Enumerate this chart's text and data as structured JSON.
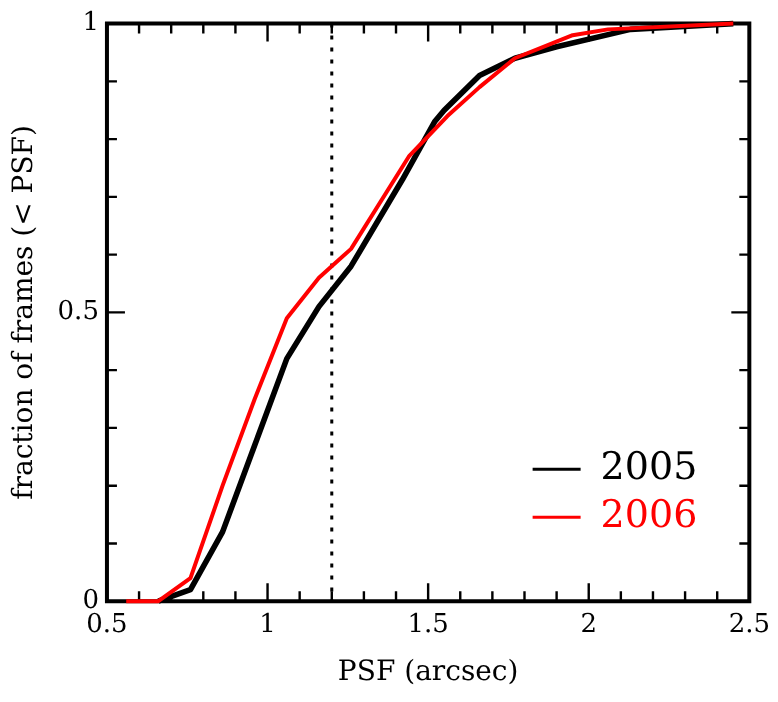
{
  "chart_data": {
    "type": "line",
    "xlabel": "PSF (arcsec)",
    "ylabel": "fraction of frames (< PSF)",
    "xlim": [
      0.5,
      2.5
    ],
    "ylim": [
      0,
      1
    ],
    "xticks": [
      0.5,
      {
        "value": 0.6,
        "label": null
      },
      {
        "value": 0.7,
        "label": null
      },
      {
        "value": 0.8,
        "label": null
      },
      {
        "value": 0.9,
        "label": null
      },
      1,
      {
        "value": 1.1,
        "label": null
      },
      {
        "value": 1.2,
        "label": null
      },
      {
        "value": 1.3,
        "label": null
      },
      {
        "value": 1.4,
        "label": null
      },
      1.5,
      {
        "value": 1.6,
        "label": null
      },
      {
        "value": 1.7,
        "label": null
      },
      {
        "value": 1.8,
        "label": null
      },
      {
        "value": 1.9,
        "label": null
      },
      2,
      {
        "value": 2.1,
        "label": null
      },
      {
        "value": 2.2,
        "label": null
      },
      {
        "value": 2.3,
        "label": null
      },
      {
        "value": 2.4,
        "label": null
      },
      2.5
    ],
    "yticks": [
      0,
      {
        "value": 0.1,
        "label": null
      },
      {
        "value": 0.2,
        "label": null
      },
      {
        "value": 0.3,
        "label": null
      },
      {
        "value": 0.4,
        "label": null
      },
      0.5,
      {
        "value": 0.6,
        "label": null
      },
      {
        "value": 0.7,
        "label": null
      },
      {
        "value": 0.8,
        "label": null
      },
      {
        "value": 0.9,
        "label": null
      },
      1
    ],
    "grid": false,
    "legend": "bottom right",
    "marker": "none",
    "line_style": "solid",
    "ref_lines": [
      {
        "axis": "x",
        "value": 1.2,
        "line_style": "dotted",
        "color": "#000000"
      }
    ],
    "series": [
      {
        "name": "2005",
        "color": "#000000",
        "x": [
          0.66,
          0.76,
          0.86,
          0.96,
          1.06,
          1.16,
          1.26,
          1.42,
          1.52,
          1.55,
          1.66,
          1.77,
          1.9,
          2.13,
          2.45
        ],
        "values": [
          0,
          0.02,
          0.12,
          0.27,
          0.42,
          0.51,
          0.58,
          0.73,
          0.83,
          0.85,
          0.91,
          0.94,
          0.96,
          0.99,
          1
        ]
      },
      {
        "name": "2006",
        "color": "#ff0000",
        "x": [
          0.56,
          0.66,
          0.76,
          0.86,
          0.96,
          1.06,
          1.16,
          1.26,
          1.44,
          1.56,
          1.66,
          1.77,
          1.95,
          2.06,
          2.45
        ],
        "values": [
          0,
          0,
          0.04,
          0.2,
          0.35,
          0.49,
          0.56,
          0.61,
          0.77,
          0.84,
          0.89,
          0.94,
          0.98,
          0.99,
          1
        ]
      }
    ]
  }
}
